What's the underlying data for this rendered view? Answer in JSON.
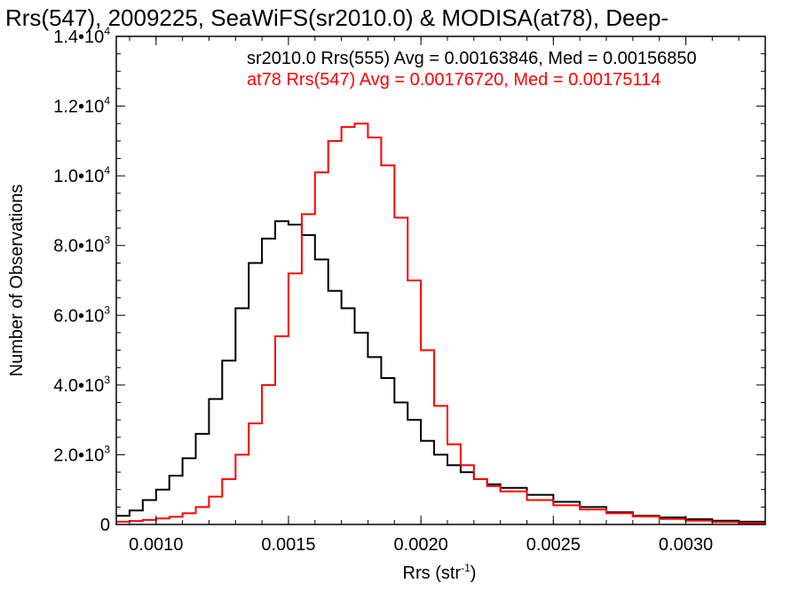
{
  "chart_data": {
    "type": "line",
    "title": "Rrs(547), 2009225, SeaWiFS(sr2010.0) & MODISA(at78), Deep-",
    "xlabel": "Rrs (str",
    "xlabel_sup": "-1",
    "xlabel_end": ")",
    "ylabel": "Number of Observations",
    "xlim": [
      0.00085,
      0.0033
    ],
    "ylim": [
      0,
      14000
    ],
    "grid": false,
    "x_ticks": [
      {
        "value": 0.001,
        "label": "0.0010"
      },
      {
        "value": 0.0015,
        "label": "0.0015"
      },
      {
        "value": 0.002,
        "label": "0.0020"
      },
      {
        "value": 0.0025,
        "label": "0.0025"
      },
      {
        "value": 0.003,
        "label": "0.0030"
      }
    ],
    "y_ticks": [
      {
        "value": 0,
        "mant": "0",
        "exp": ""
      },
      {
        "value": 2000,
        "mant": "2.0•10",
        "exp": "3"
      },
      {
        "value": 4000,
        "mant": "4.0•10",
        "exp": "3"
      },
      {
        "value": 6000,
        "mant": "6.0•10",
        "exp": "3"
      },
      {
        "value": 8000,
        "mant": "8.0•10",
        "exp": "3"
      },
      {
        "value": 10000,
        "mant": "1.0•10",
        "exp": "4"
      },
      {
        "value": 12000,
        "mant": "1.2•10",
        "exp": "4"
      },
      {
        "value": 14000,
        "mant": "1.4•10",
        "exp": "4"
      }
    ],
    "annotations": [
      {
        "text": "sr2010.0 Rrs(555) Avg = 0.00163846, Med = 0.00156850",
        "color": "#000000"
      },
      {
        "text": "at78 Rrs(547) Avg = 0.00176720, Med = 0.00175114",
        "color": "#ff0000"
      }
    ],
    "series": [
      {
        "color": "#000000",
        "x": [
          0.00085,
          0.0009,
          0.00095,
          0.001,
          0.00105,
          0.0011,
          0.00115,
          0.0012,
          0.00125,
          0.0013,
          0.00135,
          0.0014,
          0.00145,
          0.0015,
          0.00155,
          0.0016,
          0.00165,
          0.0017,
          0.00175,
          0.0018,
          0.00185,
          0.0019,
          0.00195,
          0.002,
          0.00205,
          0.0021,
          0.00215,
          0.0022,
          0.00225,
          0.0023,
          0.0024,
          0.0025,
          0.0026,
          0.0027,
          0.0028,
          0.0029,
          0.003,
          0.0031,
          0.0032,
          0.0033
        ],
        "y": [
          250,
          400,
          700,
          1000,
          1400,
          1900,
          2600,
          3600,
          4700,
          6200,
          7500,
          8200,
          8700,
          8600,
          8300,
          7600,
          6700,
          6200,
          5500,
          4800,
          4200,
          3500,
          3000,
          2400,
          2000,
          1700,
          1500,
          1300,
          1150,
          1050,
          850,
          650,
          500,
          350,
          250,
          200,
          150,
          110,
          80,
          50
        ]
      },
      {
        "color": "#ff0000",
        "x": [
          0.00085,
          0.0009,
          0.00095,
          0.001,
          0.00105,
          0.0011,
          0.00115,
          0.0012,
          0.00125,
          0.0013,
          0.00135,
          0.0014,
          0.00145,
          0.0015,
          0.00155,
          0.0016,
          0.00165,
          0.0017,
          0.00175,
          0.0018,
          0.00185,
          0.0019,
          0.00195,
          0.002,
          0.00205,
          0.0021,
          0.00215,
          0.0022,
          0.00225,
          0.0023,
          0.0024,
          0.0025,
          0.0026,
          0.0027,
          0.0028,
          0.0029,
          0.003,
          0.0031,
          0.0032,
          0.0033
        ],
        "y": [
          80,
          100,
          130,
          170,
          220,
          320,
          500,
          800,
          1300,
          2000,
          2900,
          4000,
          5400,
          7200,
          8900,
          10100,
          11000,
          11400,
          11500,
          11100,
          10300,
          8800,
          7000,
          5000,
          3400,
          2300,
          1700,
          1300,
          1100,
          950,
          700,
          550,
          430,
          320,
          230,
          160,
          110,
          70,
          40,
          20
        ]
      }
    ]
  }
}
